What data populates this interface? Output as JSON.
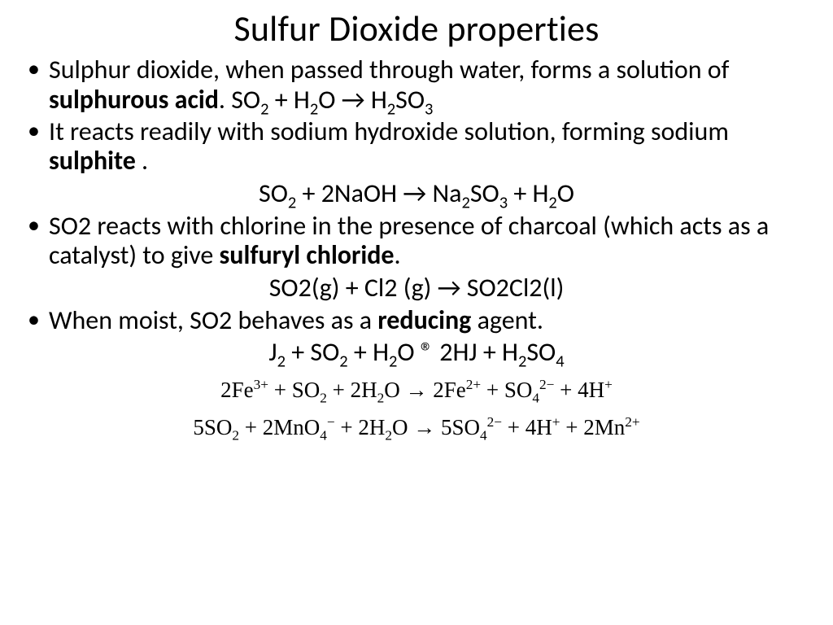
{
  "title": "Sulfur Dioxide properties",
  "bullets": {
    "b1_pre": "Sulphur dioxide, when passed through water, forms a solution of ",
    "b1_bold": "sulphurous acid",
    "b1_post": ". SO",
    "b2": "It reacts readily with sodium hydroxide solution, forming sodium ",
    "b2_bold": "sulphite",
    "b2_post": " .",
    "b3_pre": "SO2 reacts with chlorine in the presence of charcoal (which acts as a catalyst) to give ",
    "b3_bold": "sulfuryl chloride",
    "b3_post": ".",
    "b4_pre": "When moist, SO2 behaves as a ",
    "b4_bold": "reducing",
    "b4_post": " agent."
  },
  "eq": {
    "e1_a": "SO",
    "e1_b": " + H",
    "e1_c": "O → H",
    "e1_d": "SO",
    "e2_a": "SO",
    "e2_b": " + 2NaOH → Na",
    "e2_c": "SO",
    "e2_d": " + H",
    "e2_e": "O",
    "e3": "SO2(g) + Cl2 (g) → SO2Cl2(l)",
    "e4_a": "J",
    "e4_b": " + SO",
    "e4_c": " + H",
    "e4_d": "O ® 2HJ + H",
    "e4_e": "SO"
  },
  "serif": {
    "s1_a": "2Fe",
    "s1_b": " + SO",
    "s1_c": " + 2H",
    "s1_d": "O → 2Fe",
    "s1_e": " + SO",
    "s1_f": " + 4H",
    "s2_a": "5SO",
    "s2_b": " + 2MnO",
    "s2_c": " + 2H",
    "s2_d": "O → 5SO",
    "s2_e": " + 4H",
    "s2_f": " + 2Mn"
  },
  "sub2": "2",
  "sub3": "3",
  "sub4": "4",
  "sup3p": "3+",
  "sup2p": "2+",
  "sup2m": "2−",
  "supm": "−",
  "supp": "+",
  "colors": {
    "text": "#000000",
    "bg": "#ffffff"
  },
  "fonts": {
    "title_size": 44,
    "body_size": 32,
    "serif_size": 27
  }
}
